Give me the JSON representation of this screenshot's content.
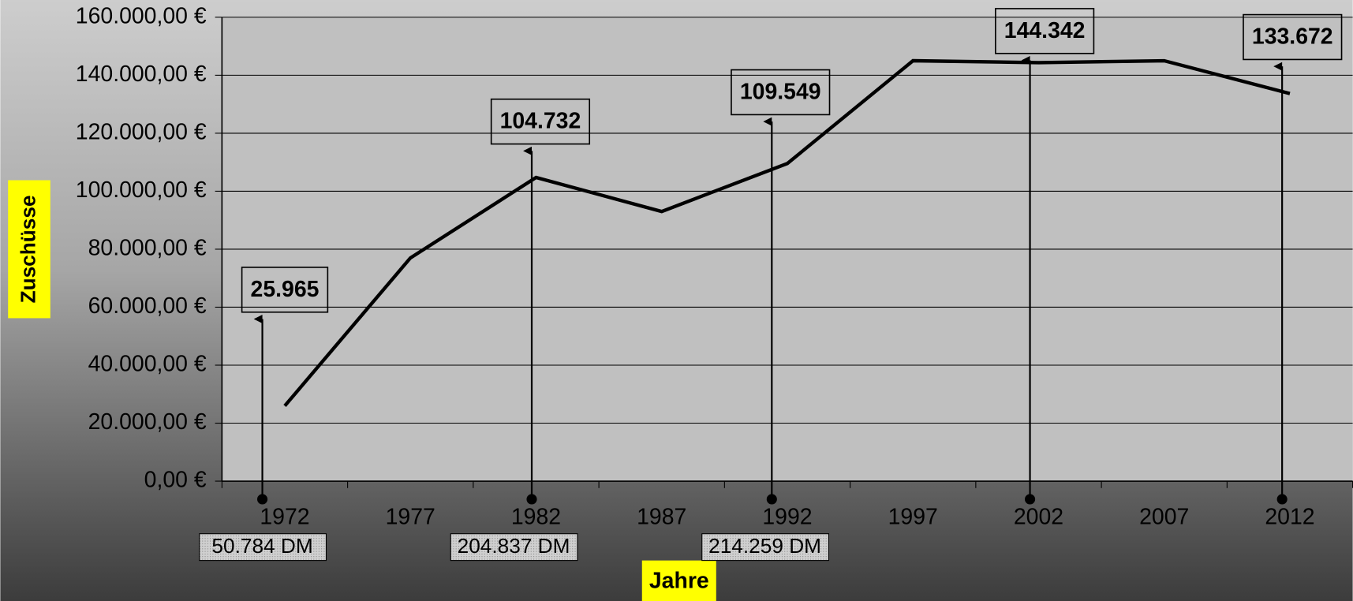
{
  "chart_data": {
    "type": "line",
    "x_label": "Jahre",
    "y_label": "Zuschüsse",
    "categories": [
      "1972",
      "1977",
      "1982",
      "1987",
      "1992",
      "1997",
      "2002",
      "2007",
      "2012"
    ],
    "values": [
      25965,
      77000,
      104732,
      93000,
      109549,
      145000,
      144342,
      145000,
      133672
    ],
    "value_labels": [
      "25.965",
      null,
      "104.732",
      null,
      "109.549",
      null,
      "144.342",
      null,
      "133.672"
    ],
    "dm_labels": [
      "50.784 DM",
      null,
      "204.837 DM",
      null,
      "214.259 DM",
      null,
      null,
      null,
      null
    ],
    "color": "#000000",
    "ylim": [
      0,
      160000
    ],
    "yticks": [
      {
        "value": 0,
        "label": "0,00 €"
      },
      {
        "value": 20000,
        "label": "20.000,00 €"
      },
      {
        "value": 40000,
        "label": "40.000,00 €"
      },
      {
        "value": 60000,
        "label": "60.000,00 €"
      },
      {
        "value": 80000,
        "label": "80.000,00 €"
      },
      {
        "value": 100000,
        "label": "100.000,00 €"
      },
      {
        "value": 120000,
        "label": "120.000,00 €"
      },
      {
        "value": 140000,
        "label": "140.000,00 €"
      },
      {
        "value": 160000,
        "label": "160.000,00 €"
      }
    ],
    "grid": true
  }
}
